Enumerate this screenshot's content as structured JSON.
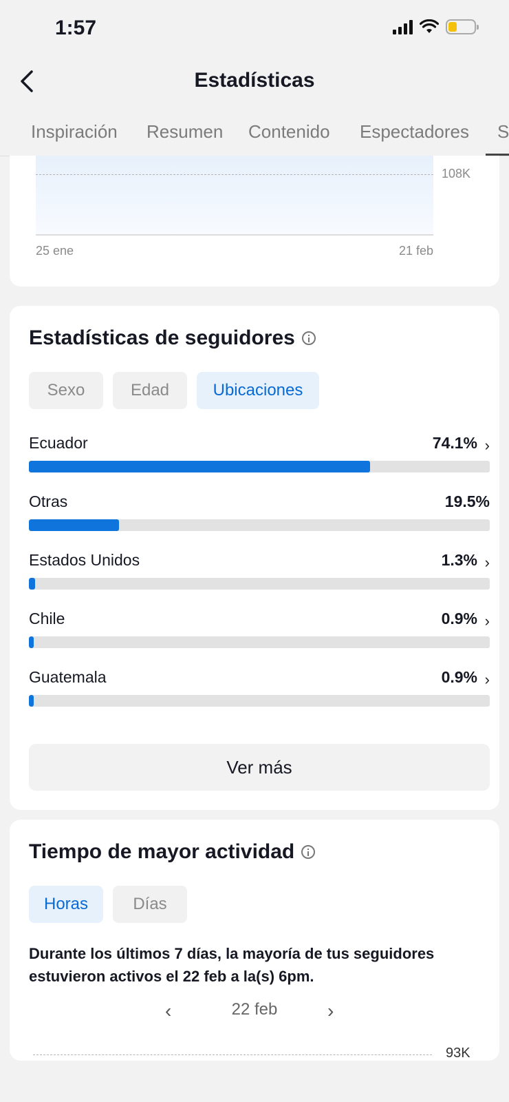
{
  "status_bar": {
    "time": "1:57",
    "battery_color": "#f4c20d"
  },
  "nav": {
    "title": "Estadísticas"
  },
  "tabs": [
    {
      "label": "Inspiración"
    },
    {
      "label": "Resumen"
    },
    {
      "label": "Contenido"
    },
    {
      "label": "Espectadores"
    },
    {
      "label": "S"
    }
  ],
  "top_chart": {
    "y_tick": "108K",
    "x_start": "25 ene",
    "x_end": "21 feb"
  },
  "followers": {
    "title": "Estadísticas de seguidores",
    "filters": [
      {
        "label": "Sexo",
        "active": false
      },
      {
        "label": "Edad",
        "active": false
      },
      {
        "label": "Ubicaciones",
        "active": true
      }
    ],
    "locations": [
      {
        "name": "Ecuador",
        "percent_label": "74.1%",
        "percent": 74.1,
        "has_chevron": true
      },
      {
        "name": "Otras",
        "percent_label": "19.5%",
        "percent": 19.5,
        "has_chevron": false
      },
      {
        "name": "Estados Unidos",
        "percent_label": "1.3%",
        "percent": 1.3,
        "has_chevron": true
      },
      {
        "name": "Chile",
        "percent_label": "0.9%",
        "percent": 0.9,
        "has_chevron": true
      },
      {
        "name": "Guatemala",
        "percent_label": "0.9%",
        "percent": 0.9,
        "has_chevron": true
      }
    ],
    "see_more": "Ver más",
    "accent_color": "#0f74dc"
  },
  "activity": {
    "title": "Tiempo de mayor actividad",
    "filters": [
      {
        "label": "Horas",
        "active": true
      },
      {
        "label": "Días",
        "active": false
      }
    ],
    "description": "Durante los últimos 7 días, la mayoría de tus seguidores estuvieron activos el 22 feb a la(s) 6pm.",
    "date": "22 feb",
    "y_tick": "93K"
  }
}
